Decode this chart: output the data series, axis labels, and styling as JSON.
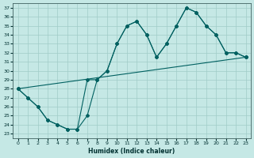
{
  "xlabel": "Humidex (Indice chaleur)",
  "background_color": "#c5e8e5",
  "grid_color": "#a0ccc8",
  "line_color": "#006060",
  "xlim": [
    -0.5,
    23.5
  ],
  "ylim": [
    22.5,
    37.5
  ],
  "xticks": [
    0,
    1,
    2,
    3,
    4,
    5,
    6,
    7,
    8,
    9,
    10,
    11,
    12,
    13,
    14,
    15,
    16,
    17,
    18,
    19,
    20,
    21,
    22,
    23
  ],
  "yticks": [
    23,
    24,
    25,
    26,
    27,
    28,
    29,
    30,
    31,
    32,
    33,
    34,
    35,
    36,
    37
  ],
  "line1_x": [
    0,
    1,
    2,
    3,
    4,
    5,
    6,
    7,
    8,
    9,
    10,
    11,
    12,
    13,
    14,
    15,
    16,
    17,
    18,
    19,
    20,
    21,
    22,
    23
  ],
  "line1_y": [
    28,
    27,
    26,
    24.5,
    24,
    23.5,
    23.5,
    25,
    29,
    30,
    33,
    35,
    35.5,
    34,
    31.5,
    33,
    35,
    37,
    36.5,
    35,
    34,
    32,
    32,
    31.5
  ],
  "line2_x": [
    0,
    1,
    2,
    3,
    4,
    5,
    6,
    7,
    8,
    9,
    10,
    11,
    12,
    13,
    14,
    15,
    16,
    17,
    18,
    19,
    20,
    21,
    22,
    23
  ],
  "line2_y": [
    28,
    27,
    26,
    24.5,
    24,
    23.5,
    23.5,
    29,
    29,
    30,
    33,
    35,
    35.5,
    34,
    31.5,
    33,
    35,
    37,
    36.5,
    35,
    34,
    32,
    32,
    31.5
  ],
  "line3_x": [
    0,
    23
  ],
  "line3_y": [
    28,
    31.5
  ]
}
